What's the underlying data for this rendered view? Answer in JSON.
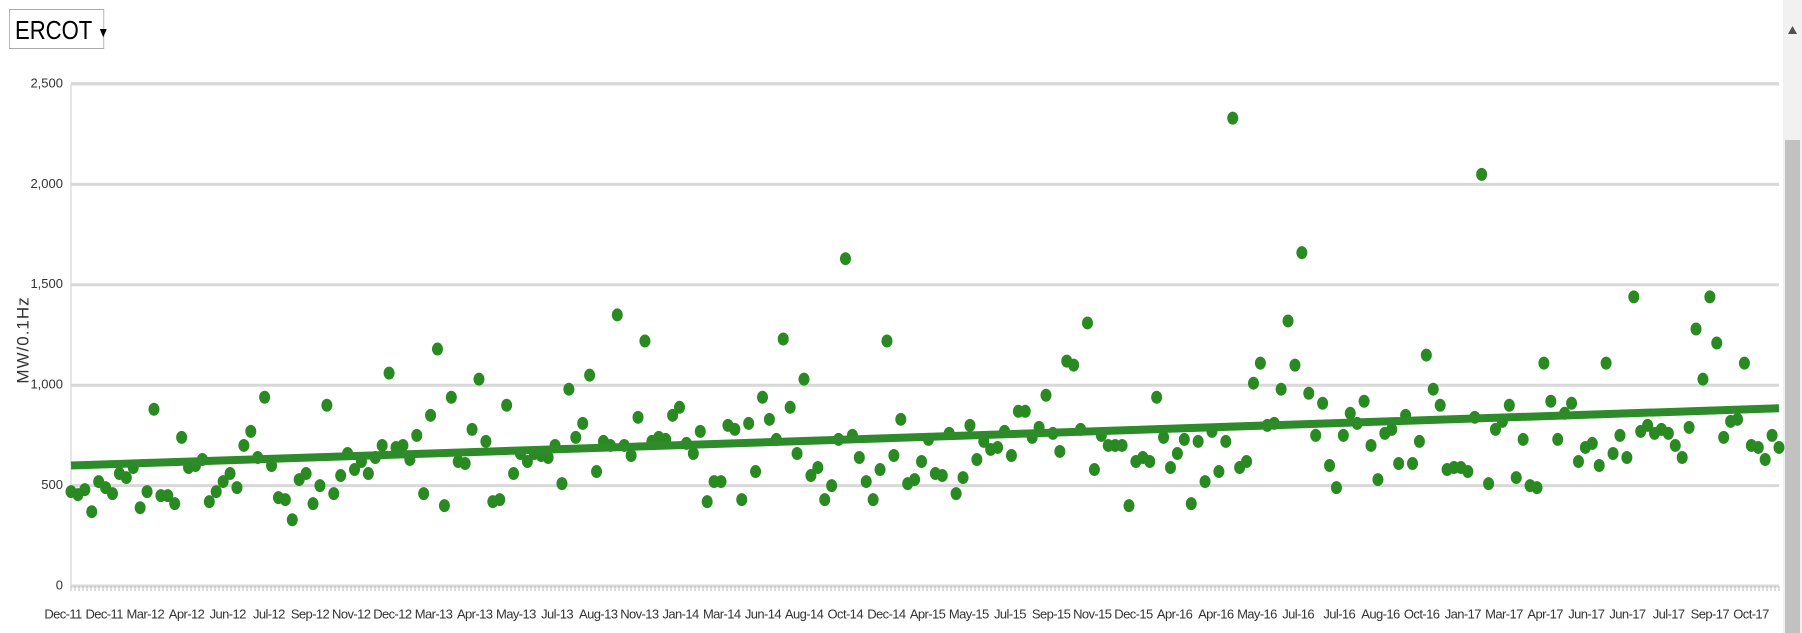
{
  "dropdown": {
    "label": "ERCOT"
  },
  "chart_data": {
    "type": "scatter",
    "y_label": "MW/0.1Hz",
    "x_tick_labels": [
      "Dec-11",
      "Dec-11",
      "Mar-12",
      "Apr-12",
      "Jun-12",
      "Jul-12",
      "Sep-12",
      "Nov-12",
      "Dec-12",
      "Mar-13",
      "Apr-13",
      "May-13",
      "Jul-13",
      "Aug-13",
      "Nov-13",
      "Jan-14",
      "Mar-14",
      "Jun-14",
      "Aug-14",
      "Oct-14",
      "Dec-14",
      "Apr-15",
      "May-15",
      "Jul-15",
      "Sep-15",
      "Nov-15",
      "Dec-15",
      "Apr-16",
      "Apr-16",
      "May-16",
      "Jul-16",
      "Jul-16",
      "Aug-16",
      "Oct-16",
      "Jan-17",
      "Mar-17",
      "Apr-17",
      "Jun-17",
      "Jun-17",
      "Jul-17",
      "Sep-17",
      "Oct-17"
    ],
    "xlim": [
      0,
      247
    ],
    "ylim": [
      0,
      2500
    ],
    "yticks": [
      0,
      500,
      {
        "value": 1000,
        "label": "1,000"
      },
      {
        "value": 1500,
        "label": "1,500"
      },
      {
        "value": 2000,
        "label": "2,000"
      },
      {
        "value": 2500,
        "label": "2,500"
      }
    ],
    "grid": true,
    "color": "#2a8a22",
    "values": [
      470,
      455,
      480,
      370,
      520,
      490,
      460,
      560,
      540,
      590,
      390,
      470,
      880,
      450,
      450,
      410,
      740,
      590,
      600,
      630,
      420,
      470,
      520,
      560,
      490,
      700,
      770,
      640,
      940,
      600,
      440,
      430,
      330,
      530,
      560,
      410,
      500,
      900,
      460,
      550,
      660,
      580,
      620,
      560,
      640,
      700,
      1060,
      690,
      700,
      630,
      750,
      460,
      850,
      1180,
      400,
      940,
      620,
      610,
      780,
      1030,
      720,
      420,
      430,
      900,
      560,
      660,
      620,
      660,
      650,
      640,
      700,
      510,
      980,
      740,
      810,
      1050,
      570,
      720,
      700,
      1350,
      700,
      650,
      840,
      1220,
      720,
      740,
      730,
      850,
      890,
      710,
      660,
      770,
      420,
      520,
      520,
      800,
      780,
      430,
      810,
      570,
      940,
      830,
      730,
      1230,
      890,
      660,
      1030,
      550,
      590,
      430,
      500,
      730,
      1630,
      750,
      640,
      520,
      430,
      580,
      1220,
      650,
      830,
      510,
      530,
      620,
      730,
      560,
      550,
      760,
      460,
      540,
      800,
      630,
      720,
      680,
      690,
      770,
      650,
      870,
      870,
      740,
      790,
      950,
      760,
      670,
      1120,
      1100,
      780,
      1310,
      580,
      750,
      700,
      700,
      700,
      400,
      620,
      640,
      620,
      940,
      740,
      590,
      660,
      730,
      410,
      720,
      520,
      770,
      570,
      720,
      2330,
      590,
      620,
      1010,
      1110,
      800,
      810,
      980,
      1320,
      1100,
      1660,
      960,
      750,
      910,
      600,
      490,
      750,
      860,
      810,
      920,
      700,
      530,
      760,
      780,
      610,
      850,
      610,
      720,
      1150,
      980,
      900,
      580,
      590,
      590,
      570,
      840,
      2050,
      510,
      780,
      820,
      900,
      540,
      730,
      500,
      490,
      1110,
      920,
      730,
      860,
      910,
      620,
      690,
      710,
      600,
      1110,
      660,
      750,
      640,
      1440,
      770,
      800,
      760,
      780,
      760,
      700,
      640,
      790,
      1280,
      1030,
      1440,
      1210,
      740,
      820,
      830,
      1110,
      700,
      690,
      630,
      750,
      690
    ],
    "trendline": {
      "color": "#2e8b2a",
      "values": [
        600,
        885
      ]
    }
  }
}
